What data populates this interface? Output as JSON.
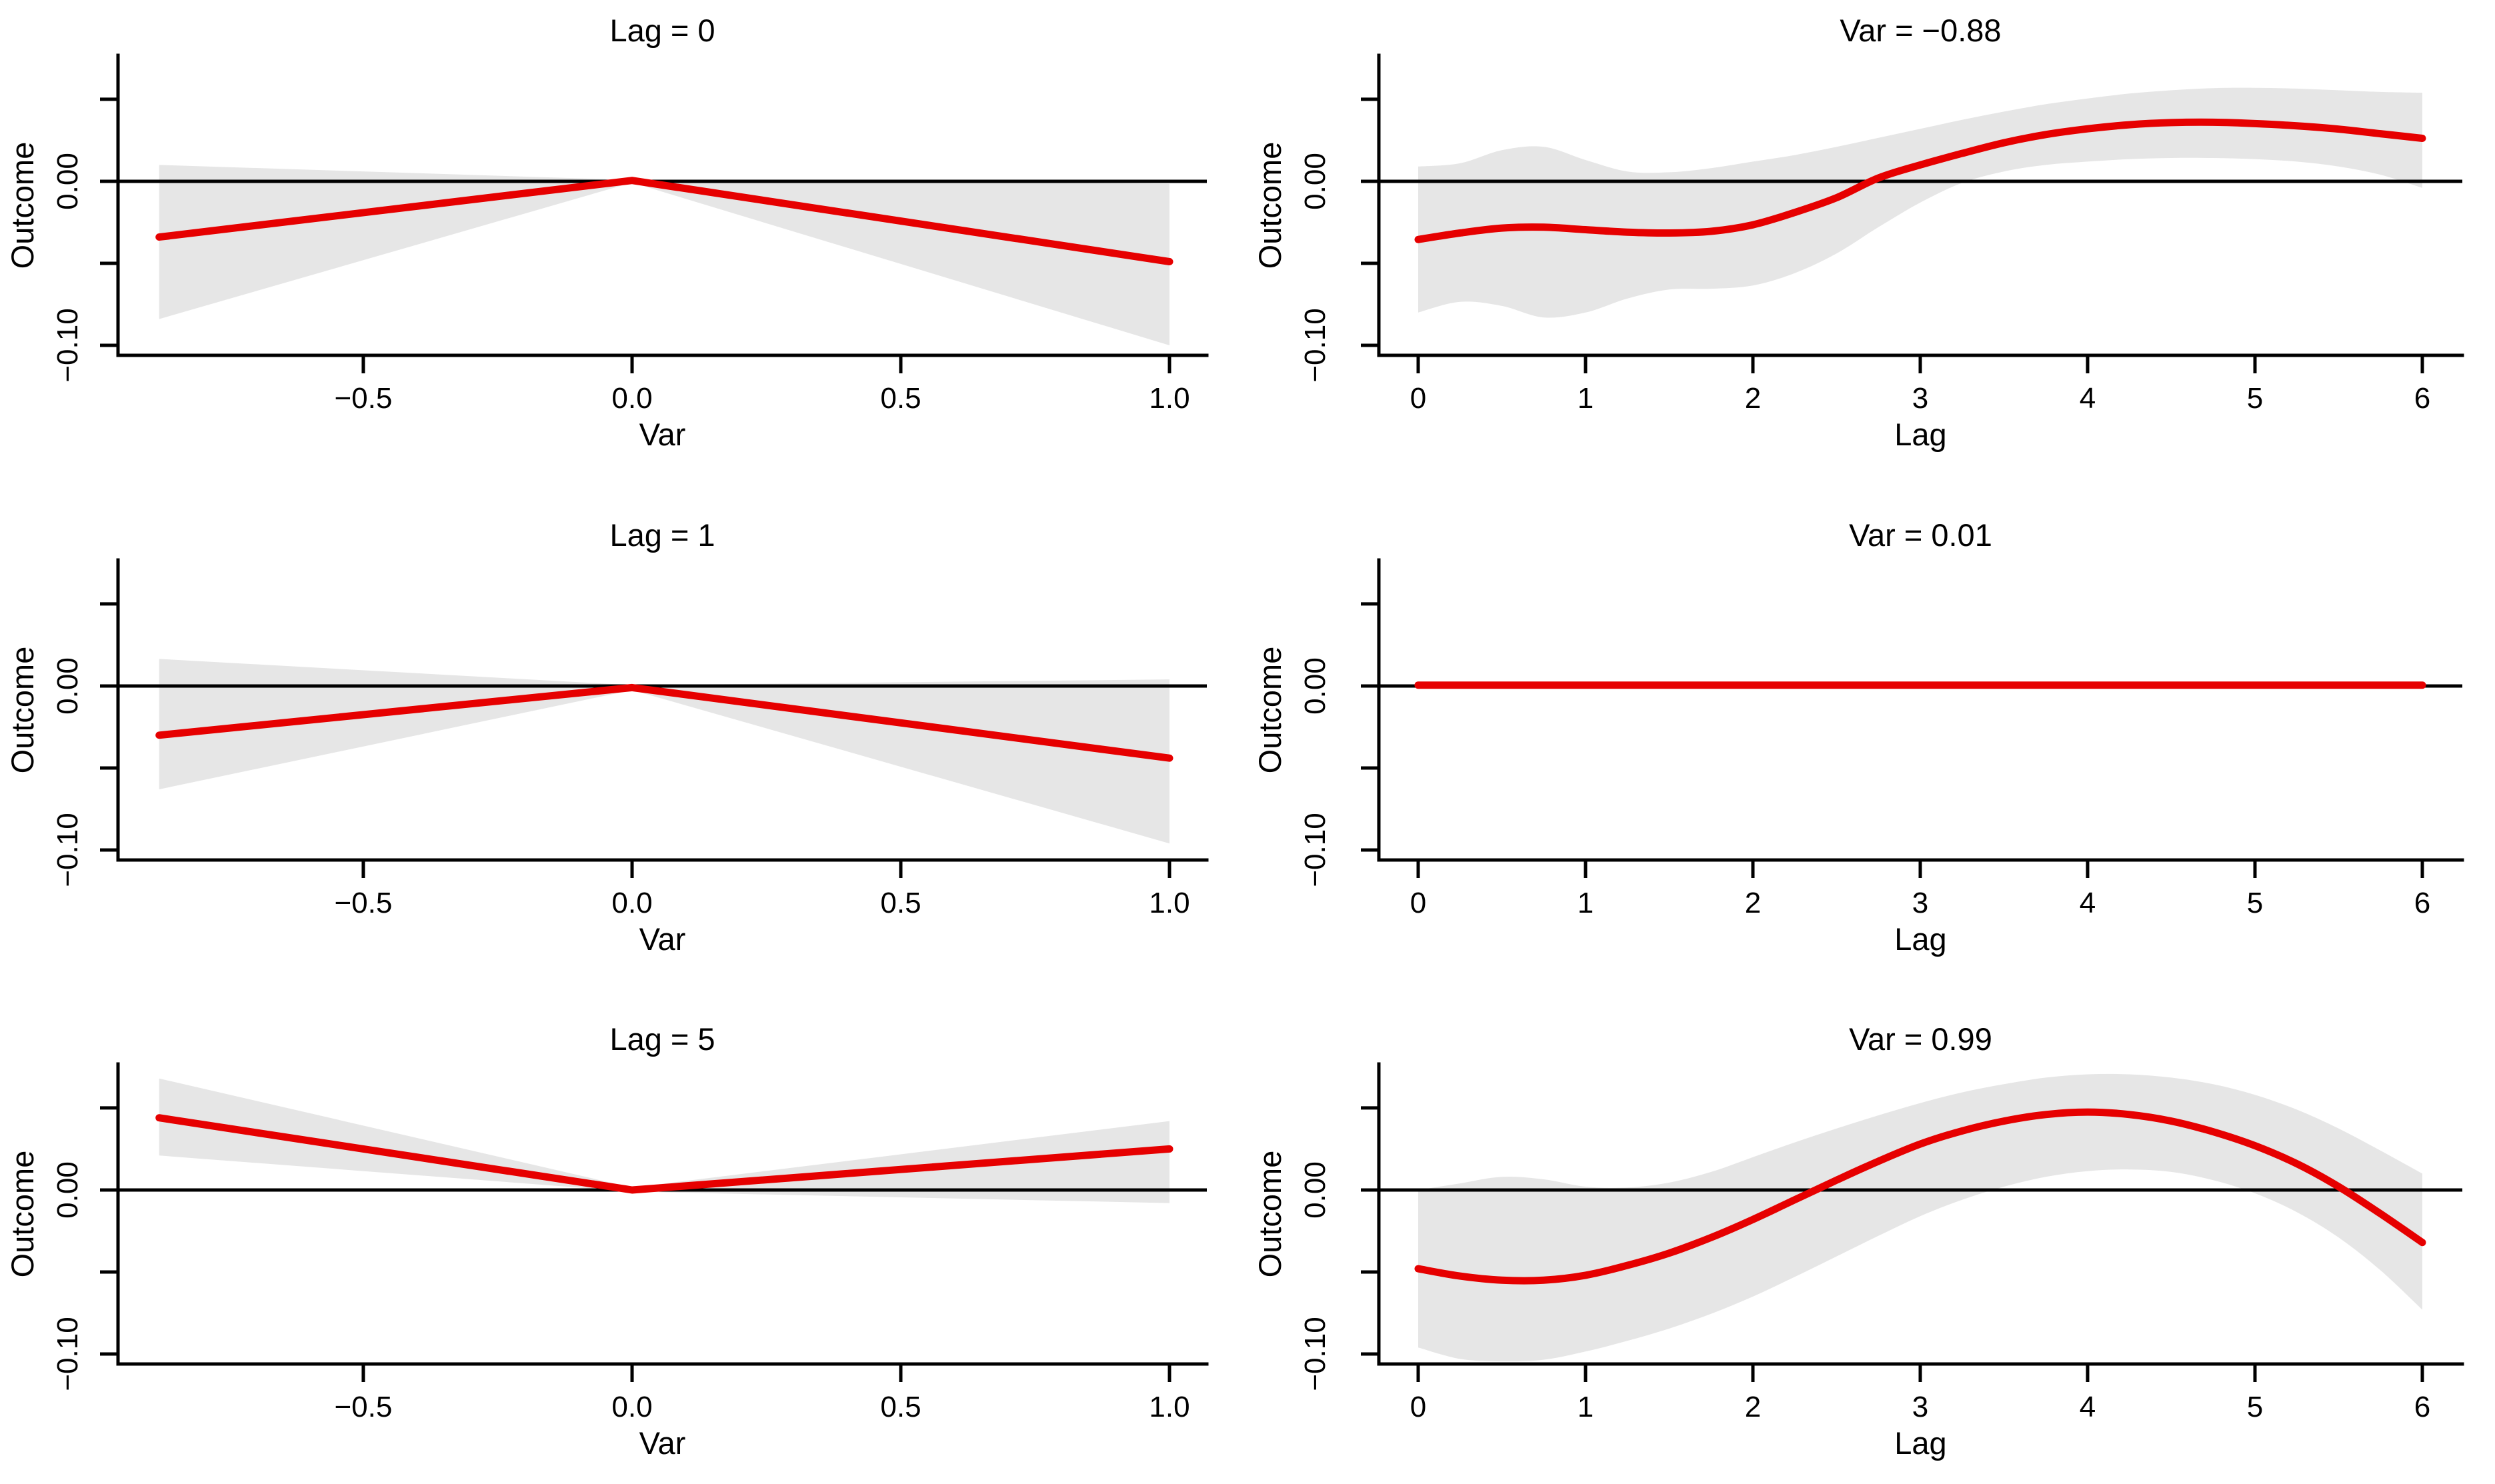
{
  "colors": {
    "estimate_line": "#e60000",
    "confidence_band": "#e6e6e6",
    "axis": "#000000",
    "reference_line": "#000000",
    "background": "#ffffff"
  },
  "figure": {
    "rows": 3,
    "cols": 2,
    "description_visible_text_only": "3x2 grid of exposure-lag-response association plots"
  },
  "chart_data": [
    {
      "type": "line",
      "title": "Lag = 0",
      "xlabel": "Var",
      "ylabel": "Outcome",
      "xlim": [
        -0.9565,
        1.0695
      ],
      "ylim": [
        -0.1061,
        0.0768
      ],
      "smooth": false,
      "grid": false,
      "reference_line_y": 0,
      "x_ticks": [
        {
          "v": -0.5,
          "label": "−0.5"
        },
        {
          "v": 0.0,
          "label": "0.0"
        },
        {
          "v": 0.5,
          "label": "0.5"
        },
        {
          "v": 1.0,
          "label": "1.0"
        }
      ],
      "y_ticks": [
        {
          "v": 0.05,
          "label": ""
        },
        {
          "v": 0.0,
          "label": "0.00"
        },
        {
          "v": -0.05,
          "label": ""
        },
        {
          "v": -0.1,
          "label": "−0.10"
        }
      ],
      "x": [
        -0.88,
        0,
        1
      ],
      "series": [
        {
          "name": "estimate",
          "values": [
            -0.034,
            0.0005,
            -0.049
          ]
        }
      ],
      "band": {
        "upper": [
          0.01,
          0.0008,
          -0.0015
        ],
        "lower": [
          -0.084,
          -0.0008,
          -0.1
        ]
      }
    },
    {
      "type": "line",
      "title": "Var = −0.88",
      "xlabel": "Lag",
      "ylabel": "Outcome",
      "xlim": [
        -0.235,
        6.239
      ],
      "ylim": [
        -0.1061,
        0.0768
      ],
      "smooth": true,
      "grid": false,
      "reference_line_y": 0,
      "x_ticks": [
        {
          "v": 0,
          "label": "0"
        },
        {
          "v": 1,
          "label": "1"
        },
        {
          "v": 2,
          "label": "2"
        },
        {
          "v": 3,
          "label": "3"
        },
        {
          "v": 4,
          "label": "4"
        },
        {
          "v": 5,
          "label": "5"
        },
        {
          "v": 6,
          "label": "6"
        }
      ],
      "y_ticks": [
        {
          "v": 0.05,
          "label": ""
        },
        {
          "v": 0.0,
          "label": "0.00"
        },
        {
          "v": -0.05,
          "label": ""
        },
        {
          "v": -0.1,
          "label": "−0.10"
        }
      ],
      "x": [
        0,
        0.25,
        0.5,
        0.75,
        1,
        1.25,
        1.5,
        1.75,
        2,
        2.25,
        2.5,
        2.75,
        3,
        3.25,
        3.5,
        3.75,
        4,
        4.25,
        4.5,
        4.75,
        5,
        5.25,
        5.5,
        5.75,
        6
      ],
      "series": [
        {
          "name": "estimate",
          "values": [
            -0.0355,
            -0.0315,
            -0.0285,
            -0.028,
            -0.0295,
            -0.031,
            -0.0315,
            -0.0305,
            -0.0265,
            -0.019,
            -0.01,
            0.002,
            0.01,
            0.017,
            0.0235,
            0.0285,
            0.032,
            0.0345,
            0.0358,
            0.036,
            0.0352,
            0.0338,
            0.0318,
            0.029,
            0.0262
          ]
        }
      ],
      "band": {
        "upper": [
          0.009,
          0.011,
          0.019,
          0.021,
          0.013,
          0.006,
          0.0055,
          0.008,
          0.012,
          0.016,
          0.021,
          0.0265,
          0.032,
          0.0375,
          0.0425,
          0.047,
          0.0505,
          0.0535,
          0.0555,
          0.0568,
          0.057,
          0.0565,
          0.0555,
          0.0545,
          0.054
        ],
        "lower": [
          -0.08,
          -0.0735,
          -0.076,
          -0.083,
          -0.08,
          -0.0715,
          -0.066,
          -0.0655,
          -0.0635,
          -0.056,
          -0.044,
          -0.028,
          -0.013,
          -0.001,
          0.006,
          0.01,
          0.012,
          0.0135,
          0.0142,
          0.0142,
          0.0135,
          0.012,
          0.009,
          0.004,
          -0.004
        ]
      }
    },
    {
      "type": "line",
      "title": "Lag = 1",
      "xlabel": "Var",
      "ylabel": "Outcome",
      "xlim": [
        -0.9565,
        1.0695
      ],
      "ylim": [
        -0.1061,
        0.0768
      ],
      "smooth": false,
      "grid": false,
      "reference_line_y": 0,
      "x_ticks": [
        {
          "v": -0.5,
          "label": "−0.5"
        },
        {
          "v": 0.0,
          "label": "0.0"
        },
        {
          "v": 0.5,
          "label": "0.5"
        },
        {
          "v": 1.0,
          "label": "1.0"
        }
      ],
      "y_ticks": [
        {
          "v": 0.05,
          "label": ""
        },
        {
          "v": 0.0,
          "label": "0.00"
        },
        {
          "v": -0.05,
          "label": ""
        },
        {
          "v": -0.1,
          "label": "−0.10"
        }
      ],
      "x": [
        -0.88,
        0,
        1
      ],
      "series": [
        {
          "name": "estimate",
          "values": [
            -0.03,
            -0.001,
            -0.044
          ]
        }
      ],
      "band": {
        "upper": [
          0.0165,
          0.0005,
          0.004
        ],
        "lower": [
          -0.063,
          -0.0025,
          -0.096
        ]
      }
    },
    {
      "type": "line",
      "title": "Var = 0.01",
      "xlabel": "Lag",
      "ylabel": "Outcome",
      "xlim": [
        -0.235,
        6.239
      ],
      "ylim": [
        -0.1061,
        0.0768
      ],
      "smooth": false,
      "grid": false,
      "reference_line_y": 0,
      "x_ticks": [
        {
          "v": 0,
          "label": "0"
        },
        {
          "v": 1,
          "label": "1"
        },
        {
          "v": 2,
          "label": "2"
        },
        {
          "v": 3,
          "label": "3"
        },
        {
          "v": 4,
          "label": "4"
        },
        {
          "v": 5,
          "label": "5"
        },
        {
          "v": 6,
          "label": "6"
        }
      ],
      "y_ticks": [
        {
          "v": 0.05,
          "label": ""
        },
        {
          "v": 0.0,
          "label": "0.00"
        },
        {
          "v": -0.05,
          "label": ""
        },
        {
          "v": -0.1,
          "label": "−0.10"
        }
      ],
      "x": [
        0,
        6
      ],
      "series": [
        {
          "name": "estimate",
          "values": [
            0.0005,
            0.0005
          ]
        }
      ],
      "band": null
    },
    {
      "type": "line",
      "title": "Lag = 5",
      "xlabel": "Var",
      "ylabel": "Outcome",
      "xlim": [
        -0.9565,
        1.0695
      ],
      "ylim": [
        -0.1061,
        0.0768
      ],
      "smooth": false,
      "grid": false,
      "reference_line_y": 0,
      "x_ticks": [
        {
          "v": -0.5,
          "label": "−0.5"
        },
        {
          "v": 0.0,
          "label": "0.0"
        },
        {
          "v": 0.5,
          "label": "0.5"
        },
        {
          "v": 1.0,
          "label": "1.0"
        }
      ],
      "y_ticks": [
        {
          "v": 0.05,
          "label": ""
        },
        {
          "v": 0.0,
          "label": "0.00"
        },
        {
          "v": -0.05,
          "label": ""
        },
        {
          "v": -0.1,
          "label": "−0.10"
        }
      ],
      "x": [
        -0.88,
        0,
        1
      ],
      "series": [
        {
          "name": "estimate",
          "values": [
            0.044,
            0.0,
            0.025
          ]
        }
      ],
      "band": {
        "upper": [
          0.068,
          0.0015,
          0.042
        ],
        "lower": [
          0.021,
          -0.001,
          -0.008
        ]
      }
    },
    {
      "type": "line",
      "title": "Var = 0.99",
      "xlabel": "Lag",
      "ylabel": "Outcome",
      "xlim": [
        -0.235,
        6.239
      ],
      "ylim": [
        -0.1061,
        0.0768
      ],
      "smooth": true,
      "grid": false,
      "reference_line_y": 0,
      "x_ticks": [
        {
          "v": 0,
          "label": "0"
        },
        {
          "v": 1,
          "label": "1"
        },
        {
          "v": 2,
          "label": "2"
        },
        {
          "v": 3,
          "label": "3"
        },
        {
          "v": 4,
          "label": "4"
        },
        {
          "v": 5,
          "label": "5"
        },
        {
          "v": 6,
          "label": "6"
        }
      ],
      "y_ticks": [
        {
          "v": 0.05,
          "label": ""
        },
        {
          "v": 0.0,
          "label": "0.00"
        },
        {
          "v": -0.05,
          "label": ""
        },
        {
          "v": -0.1,
          "label": "−0.10"
        }
      ],
      "x": [
        0,
        0.25,
        0.5,
        0.75,
        1,
        1.25,
        1.5,
        1.75,
        2,
        2.25,
        2.5,
        2.75,
        3,
        3.25,
        3.5,
        3.75,
        4,
        4.25,
        4.5,
        4.75,
        5,
        5.25,
        5.5,
        5.75,
        6
      ],
      "series": [
        {
          "name": "estimate",
          "values": [
            -0.048,
            -0.0525,
            -0.055,
            -0.055,
            -0.052,
            -0.046,
            -0.0385,
            -0.029,
            -0.018,
            -0.006,
            0.006,
            0.0175,
            0.028,
            0.036,
            0.042,
            0.046,
            0.0475,
            0.046,
            0.042,
            0.0355,
            0.027,
            0.016,
            0.002,
            -0.0145,
            -0.032
          ]
        }
      ],
      "band": {
        "upper": [
          0.0,
          0.004,
          0.008,
          0.0065,
          0.002,
          0.0015,
          0.0045,
          0.011,
          0.02,
          0.029,
          0.0375,
          0.0455,
          0.053,
          0.0595,
          0.0645,
          0.0685,
          0.0705,
          0.0705,
          0.0685,
          0.0645,
          0.058,
          0.049,
          0.0375,
          0.024,
          0.01
        ],
        "lower": [
          -0.096,
          -0.103,
          -0.1045,
          -0.1035,
          -0.0985,
          -0.092,
          -0.0845,
          -0.0755,
          -0.065,
          -0.053,
          -0.0405,
          -0.028,
          -0.016,
          -0.006,
          0.002,
          0.008,
          0.0115,
          0.0125,
          0.011,
          0.006,
          -0.002,
          -0.0135,
          -0.029,
          -0.049,
          -0.073
        ]
      }
    }
  ]
}
